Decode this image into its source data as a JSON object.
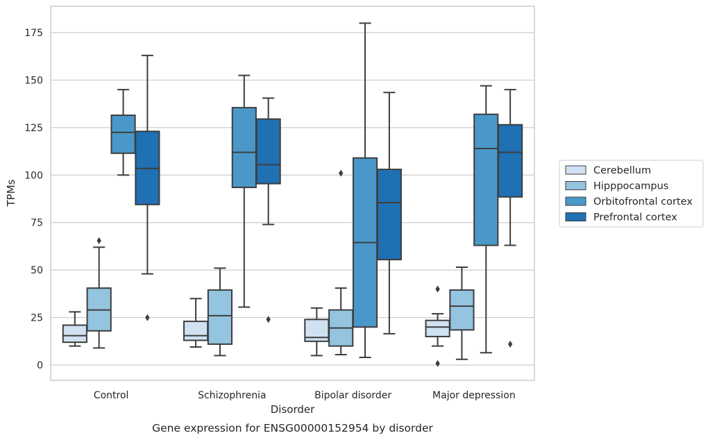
{
  "chart_data": {
    "type": "box",
    "caption": "Gene expression for ENSG00000152954 by disorder",
    "xlabel": "Disorder",
    "ylabel": "TPMs",
    "ylim": [
      -8,
      189
    ],
    "yticks": [
      0,
      25,
      50,
      75,
      100,
      125,
      150,
      175
    ],
    "grid": "horizontal",
    "legend_position": "right",
    "categories": [
      "Control",
      "Schizophrenia",
      "Bipolar disorder",
      "Major depression"
    ],
    "series": [
      {
        "name": "Cerebellum",
        "color": "#d0e1f2",
        "boxes": [
          {
            "whislo": 10,
            "q1": 12,
            "med": 15.5,
            "q3": 21,
            "whishi": 28,
            "fliers": []
          },
          {
            "whislo": 9.5,
            "q1": 13,
            "med": 15.5,
            "q3": 23,
            "whishi": 35,
            "fliers": []
          },
          {
            "whislo": 5,
            "q1": 12.5,
            "med": 14.5,
            "q3": 24,
            "whishi": 30,
            "fliers": []
          },
          {
            "whislo": 10,
            "q1": 15,
            "med": 20,
            "q3": 23.5,
            "whishi": 27,
            "fliers": [
              40,
              0.8
            ]
          }
        ]
      },
      {
        "name": "Hipppocampus",
        "color": "#94c4df",
        "boxes": [
          {
            "whislo": 9,
            "q1": 18,
            "med": 29,
            "q3": 40.5,
            "whishi": 62,
            "fliers": [
              65.5
            ]
          },
          {
            "whislo": 5,
            "q1": 11,
            "med": 26,
            "q3": 39.5,
            "whishi": 51,
            "fliers": []
          },
          {
            "whislo": 5.5,
            "q1": 10,
            "med": 19.5,
            "q3": 29,
            "whishi": 40.5,
            "fliers": [
              101
            ]
          },
          {
            "whislo": 3,
            "q1": 18.5,
            "med": 31,
            "q3": 39.5,
            "whishi": 51.5,
            "fliers": []
          }
        ]
      },
      {
        "name": "Orbitofrontal cortex",
        "color": "#4a98c9",
        "boxes": [
          {
            "whislo": 100,
            "q1": 111.5,
            "med": 122.5,
            "q3": 131.5,
            "whishi": 145,
            "fliers": []
          },
          {
            "whislo": 30.5,
            "q1": 93.5,
            "med": 112,
            "q3": 135.5,
            "whishi": 152.5,
            "fliers": []
          },
          {
            "whislo": 4,
            "q1": 20,
            "med": 64.5,
            "q3": 109,
            "whishi": 180,
            "fliers": []
          },
          {
            "whislo": 6.5,
            "q1": 63,
            "med": 114,
            "q3": 132,
            "whishi": 147,
            "fliers": []
          }
        ]
      },
      {
        "name": "Prefrontal cortex",
        "color": "#2070b4",
        "boxes": [
          {
            "whislo": 48,
            "q1": 84.5,
            "med": 103.5,
            "q3": 123,
            "whishi": 163,
            "fliers": [
              25
            ]
          },
          {
            "whislo": 74,
            "q1": 95.5,
            "med": 105.5,
            "q3": 129.5,
            "whishi": 140.5,
            "fliers": [
              24
            ]
          },
          {
            "whislo": 16.5,
            "q1": 55.5,
            "med": 85.5,
            "q3": 103,
            "whishi": 143.5,
            "fliers": []
          },
          {
            "whislo": 63,
            "q1": 88.5,
            "med": 112,
            "q3": 126.5,
            "whishi": 145,
            "fliers": [
              11
            ]
          }
        ]
      }
    ]
  }
}
